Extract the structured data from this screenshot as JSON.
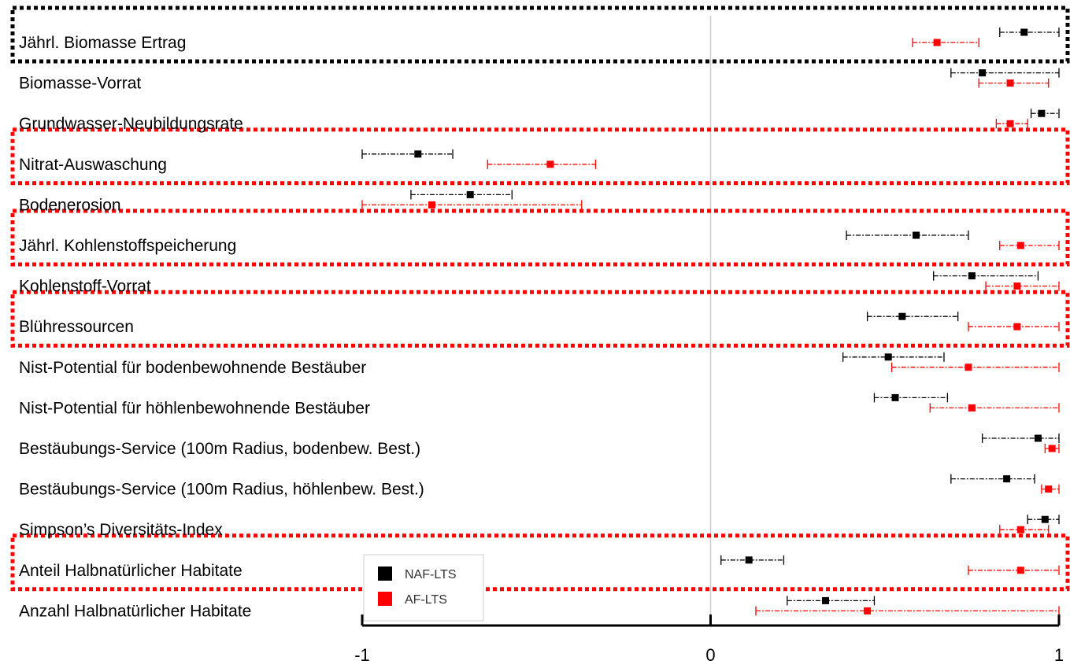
{
  "chart_data": {
    "type": "scatter",
    "xlim": [
      -1,
      1
    ],
    "x_ticks": [
      -1,
      0,
      1
    ],
    "x_tick_labels": [
      "-1",
      "0",
      "1"
    ],
    "grid": false,
    "zero_line": true,
    "legend_position": "bottom-left",
    "categories": [
      "Jährl. Biomasse Ertrag",
      "Biomasse-Vorrat",
      "Grundwasser-Neubildungsrate",
      "Nitrat-Auswaschung",
      "Bodenerosion",
      "Jährl. Kohlenstoffspeicherung",
      "Kohlenstoff-Vorrat",
      "Blühressourcen",
      "Nist-Potential für bodenbewohnende Bestäuber",
      "Nist-Potential für höhlenbewohnende Bestäuber",
      "Bestäubungs-Service (100m Radius, bodenbew. Best.)",
      "Bestäubungs-Service (100m Radius, höhlenbew. Best.)",
      "Simpson’s Diversitäts-Index",
      "Anteil Halbnatürlicher Habitate",
      "Anzahl Halbnatürlicher Habitate"
    ],
    "series": [
      {
        "name": "NAF-LTS",
        "color": "#000000",
        "points": [
          {
            "x": 0.9,
            "low": 0.83,
            "high": 1.0
          },
          {
            "x": 0.78,
            "low": 0.69,
            "high": 1.0
          },
          {
            "x": 0.95,
            "low": 0.92,
            "high": 1.0
          },
          {
            "x": -0.84,
            "low": -1.0,
            "high": -0.74
          },
          {
            "x": -0.69,
            "low": -0.86,
            "high": -0.57
          },
          {
            "x": 0.59,
            "low": 0.39,
            "high": 0.74
          },
          {
            "x": 0.75,
            "low": 0.64,
            "high": 0.94
          },
          {
            "x": 0.55,
            "low": 0.45,
            "high": 0.71
          },
          {
            "x": 0.51,
            "low": 0.38,
            "high": 0.67
          },
          {
            "x": 0.53,
            "low": 0.47,
            "high": 0.68
          },
          {
            "x": 0.94,
            "low": 0.78,
            "high": 1.0
          },
          {
            "x": 0.85,
            "low": 0.69,
            "high": 0.93
          },
          {
            "x": 0.96,
            "low": 0.91,
            "high": 1.0
          },
          {
            "x": 0.11,
            "low": 0.03,
            "high": 0.21
          },
          {
            "x": 0.33,
            "low": 0.22,
            "high": 0.47
          }
        ]
      },
      {
        "name": "AF-LTS",
        "color": "#ff0000",
        "points": [
          {
            "x": 0.65,
            "low": 0.58,
            "high": 0.77
          },
          {
            "x": 0.86,
            "low": 0.77,
            "high": 0.97
          },
          {
            "x": 0.86,
            "low": 0.82,
            "high": 0.91
          },
          {
            "x": -0.46,
            "low": -0.64,
            "high": -0.33
          },
          {
            "x": -0.8,
            "low": -1.0,
            "high": -0.37
          },
          {
            "x": 0.89,
            "low": 0.83,
            "high": 1.0
          },
          {
            "x": 0.88,
            "low": 0.79,
            "high": 1.0
          },
          {
            "x": 0.88,
            "low": 0.74,
            "high": 1.0
          },
          {
            "x": 0.74,
            "low": 0.52,
            "high": 1.0
          },
          {
            "x": 0.75,
            "low": 0.63,
            "high": 1.0
          },
          {
            "x": 0.98,
            "low": 0.96,
            "high": 1.0
          },
          {
            "x": 0.97,
            "low": 0.95,
            "high": 1.0
          },
          {
            "x": 0.89,
            "low": 0.83,
            "high": 0.97
          },
          {
            "x": 0.89,
            "low": 0.74,
            "high": 1.0
          },
          {
            "x": 0.45,
            "low": 0.13,
            "high": 1.0
          }
        ]
      }
    ],
    "highlight_boxes": [
      {
        "rows": [
          0
        ],
        "style": "dotted",
        "color": "#000000"
      },
      {
        "rows": [
          3
        ],
        "style": "dotted",
        "color": "#ff0000"
      },
      {
        "rows": [
          5
        ],
        "style": "dotted",
        "color": "#ff0000"
      },
      {
        "rows": [
          7
        ],
        "style": "dotted",
        "color": "#ff0000"
      },
      {
        "rows": [
          13
        ],
        "style": "dotted",
        "color": "#ff0000"
      }
    ]
  }
}
